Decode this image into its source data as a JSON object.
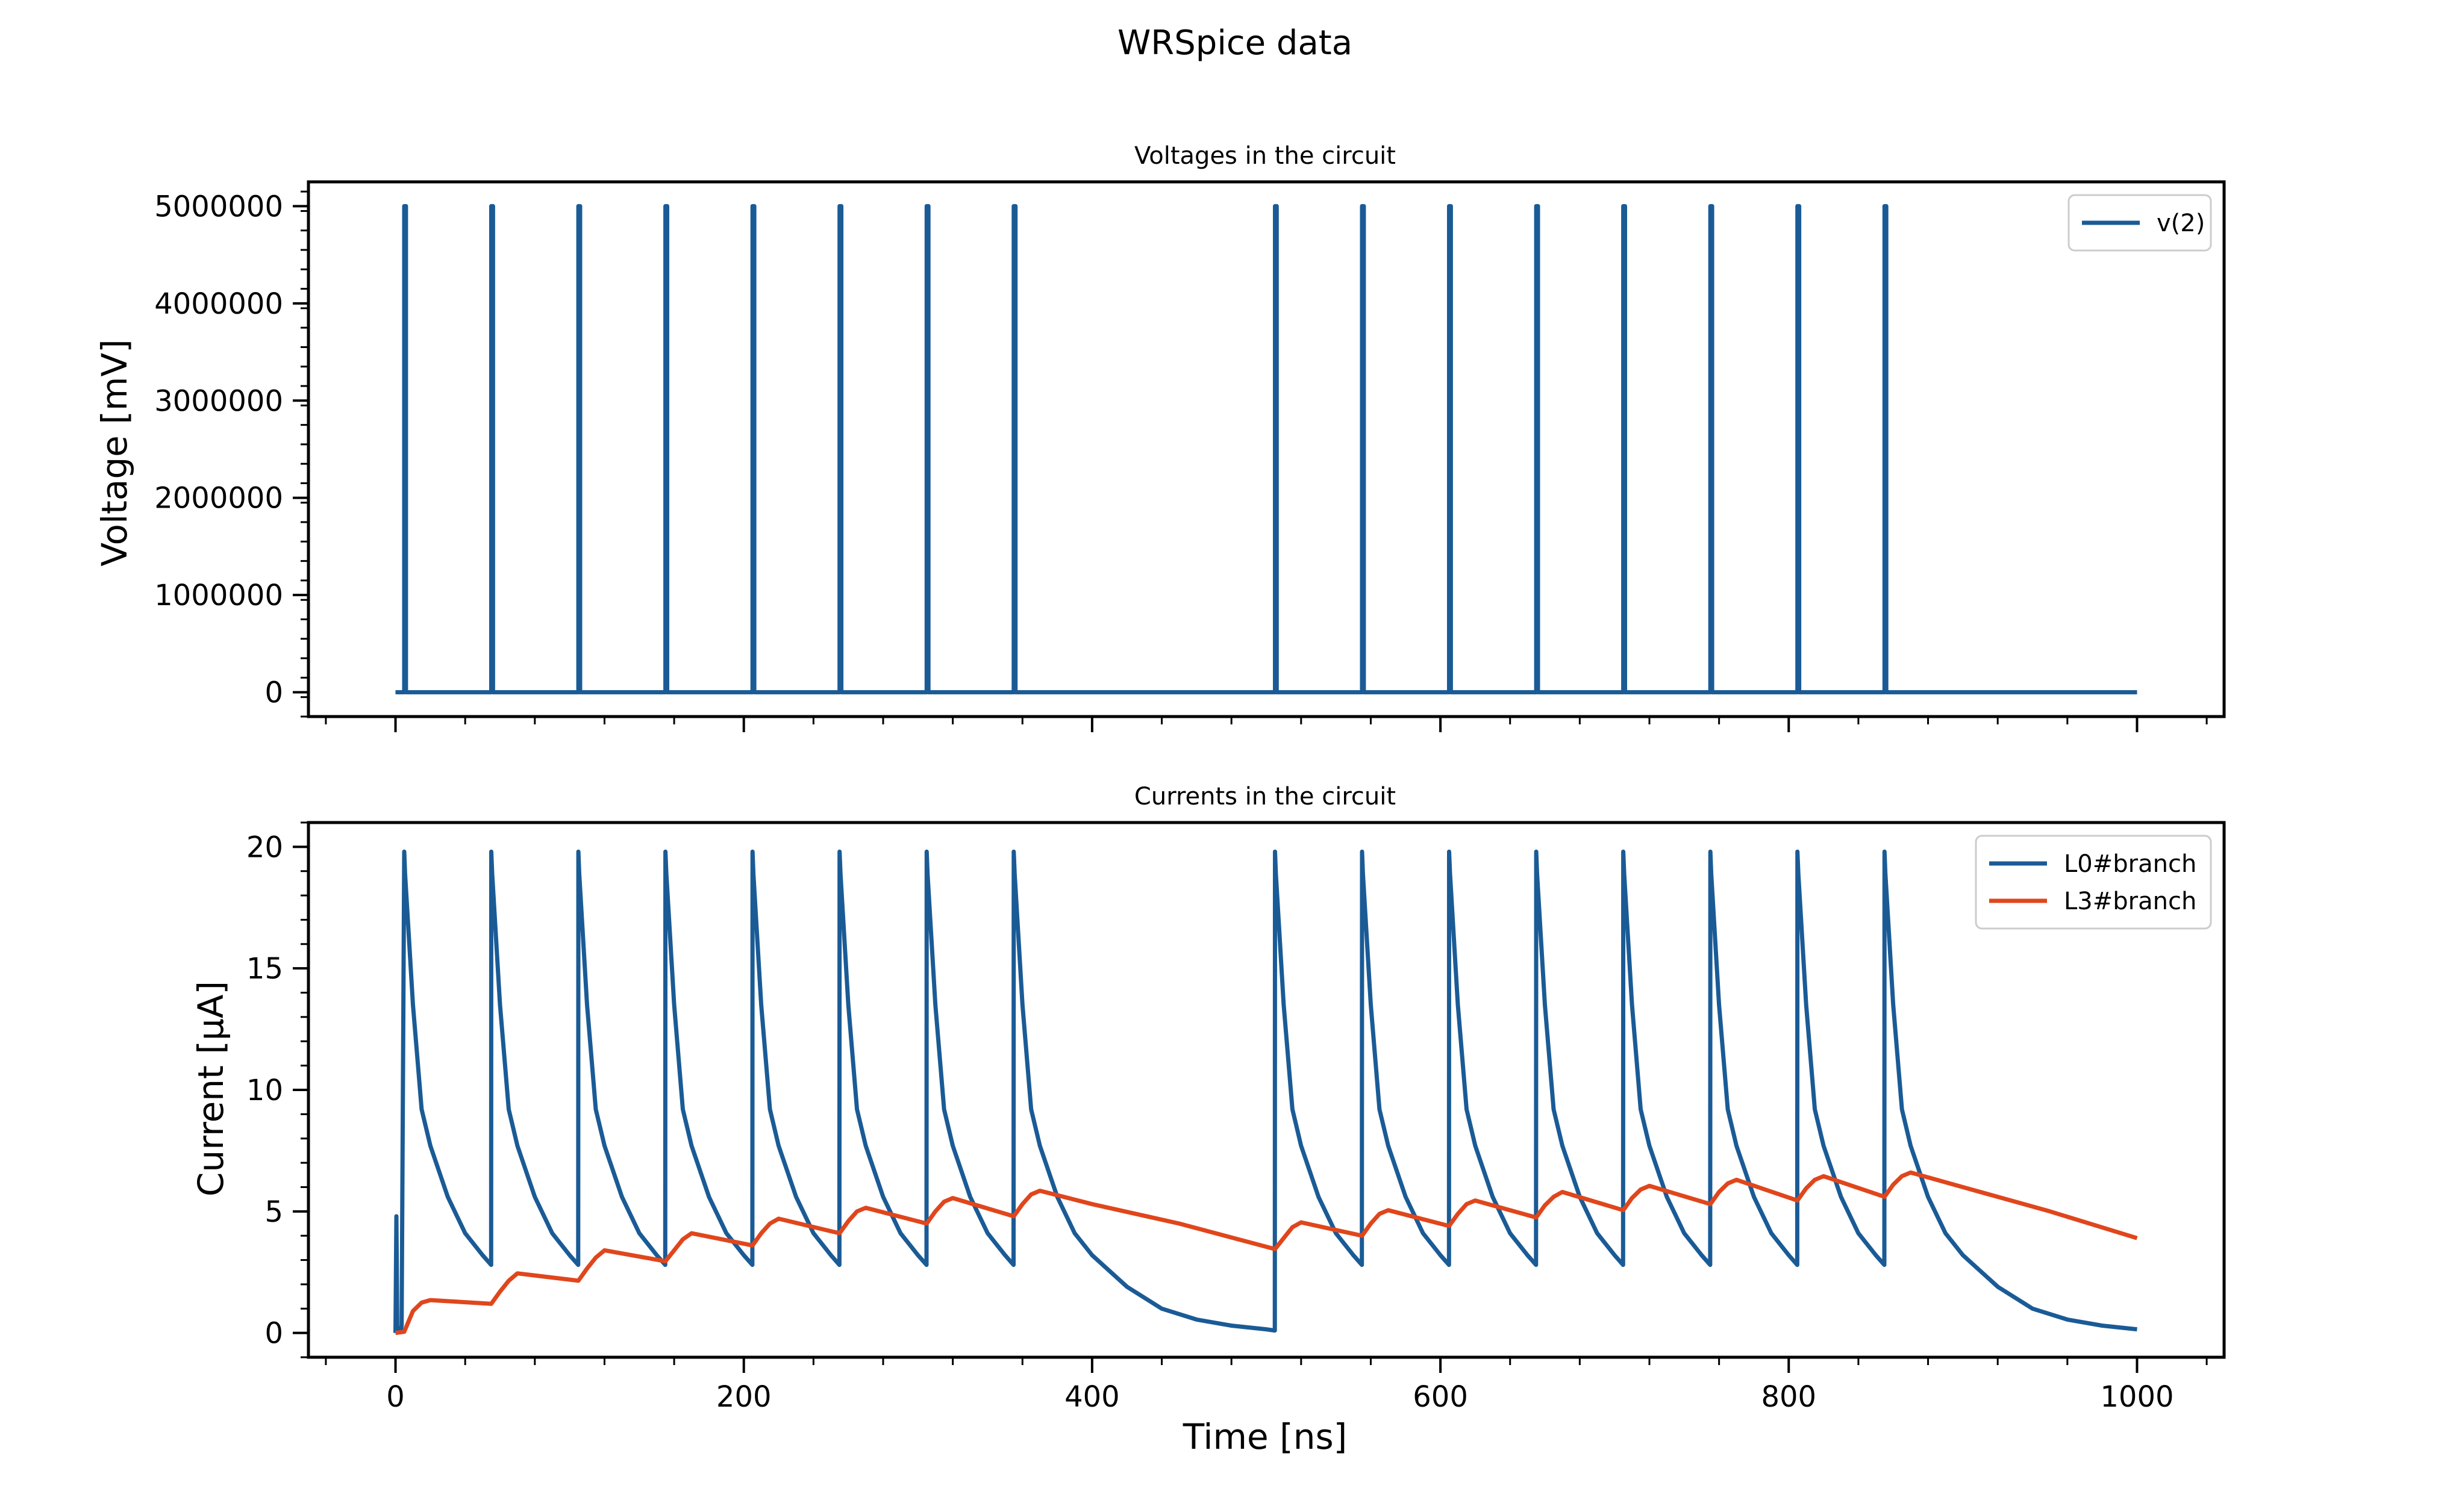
{
  "figure": {
    "title": "WRSpice data"
  },
  "chart_data": [
    {
      "type": "line",
      "title": "Voltages in the circuit",
      "xlabel": "",
      "ylabel": "Voltage [mV]",
      "xlim": [
        -50,
        1050
      ],
      "ylim": [
        -250000,
        5250000
      ],
      "x_ticks": [
        0,
        200,
        400,
        600,
        800,
        1000
      ],
      "x_tick_labels_visible": false,
      "y_ticks": [
        0,
        1000000,
        2000000,
        3000000,
        4000000,
        5000000
      ],
      "y_tick_labels": [
        "0",
        "1000000",
        "2000000",
        "3000000",
        "4000000",
        "5000000"
      ],
      "legend": {
        "position": "top-right",
        "entries": [
          "v(2)"
        ]
      },
      "grid": false,
      "series": [
        {
          "name": "v(2)",
          "color": "#1a5b96",
          "kind": "spikes",
          "baseline": 0,
          "peak": 5000000,
          "x_start": 0,
          "x_end": 1000,
          "spike_times": [
            5,
            55,
            105,
            155,
            205,
            255,
            305,
            355,
            505,
            555,
            605,
            655,
            705,
            755,
            805,
            855
          ]
        }
      ]
    },
    {
      "type": "line",
      "title": "Currents in the circuit",
      "xlabel": "Time [ns]",
      "ylabel": "Current [μA]",
      "xlim": [
        -50,
        1050
      ],
      "ylim": [
        -1,
        21
      ],
      "x_ticks": [
        0,
        200,
        400,
        600,
        800,
        1000
      ],
      "x_tick_labels": [
        "0",
        "200",
        "400",
        "600",
        "800",
        "1000"
      ],
      "y_ticks": [
        0,
        5,
        10,
        15,
        20
      ],
      "y_tick_labels": [
        "0",
        "5",
        "10",
        "15",
        "20"
      ],
      "legend": {
        "position": "top-right",
        "entries": [
          "L0#branch",
          "L3#branch"
        ]
      },
      "grid": false,
      "series": [
        {
          "name": "L0#branch",
          "color": "#1a5b96",
          "x": [
            0,
            0.5,
            1,
            2,
            3,
            3.5,
            5,
            5.5,
            10,
            15,
            20,
            30,
            40,
            50,
            54.9,
            55,
            55.5,
            60,
            65,
            70,
            80,
            90,
            100,
            104.9,
            105,
            105.5,
            110,
            115,
            120,
            130,
            140,
            150,
            154.9,
            155,
            155.5,
            160,
            165,
            170,
            180,
            190,
            200,
            204.9,
            205,
            205.5,
            210,
            215,
            220,
            230,
            240,
            250,
            254.9,
            255,
            255.5,
            260,
            265,
            270,
            280,
            290,
            300,
            304.9,
            305,
            305.5,
            310,
            315,
            320,
            330,
            340,
            350,
            354.9,
            355,
            355.5,
            360,
            365,
            370,
            380,
            390,
            400,
            420,
            440,
            460,
            480,
            500,
            504.9,
            505,
            505.5,
            510,
            515,
            520,
            530,
            540,
            550,
            554.9,
            555,
            555.5,
            560,
            565,
            570,
            580,
            590,
            600,
            604.9,
            605,
            605.5,
            610,
            615,
            620,
            630,
            640,
            650,
            654.9,
            655,
            655.5,
            660,
            665,
            670,
            680,
            690,
            700,
            704.9,
            705,
            705.5,
            710,
            715,
            720,
            730,
            740,
            750,
            754.9,
            755,
            755.5,
            760,
            765,
            770,
            780,
            790,
            800,
            804.9,
            805,
            805.5,
            810,
            815,
            820,
            830,
            840,
            850,
            854.9,
            855,
            855.5,
            860,
            865,
            870,
            880,
            890,
            900,
            920,
            940,
            960,
            980,
            1000
          ],
          "y": [
            0,
            4.8,
            0.2,
            0.1,
            0.1,
            0.3,
            19.8,
            18.9,
            13.5,
            9.2,
            7.7,
            5.6,
            4.1,
            3.2,
            2.8,
            19.8,
            18.9,
            13.5,
            9.2,
            7.7,
            5.6,
            4.1,
            3.2,
            2.8,
            19.8,
            18.9,
            13.5,
            9.2,
            7.7,
            5.6,
            4.1,
            3.2,
            2.8,
            19.8,
            18.9,
            13.5,
            9.2,
            7.7,
            5.6,
            4.1,
            3.2,
            2.8,
            19.8,
            18.9,
            13.5,
            9.2,
            7.7,
            5.6,
            4.1,
            3.2,
            2.8,
            19.8,
            18.9,
            13.5,
            9.2,
            7.7,
            5.6,
            4.1,
            3.2,
            2.8,
            19.8,
            18.9,
            13.5,
            9.2,
            7.7,
            5.6,
            4.1,
            3.2,
            2.8,
            19.8,
            18.9,
            13.5,
            9.2,
            7.7,
            5.6,
            4.1,
            3.2,
            1.9,
            1.0,
            0.55,
            0.3,
            0.15,
            0.1,
            19.8,
            18.9,
            13.5,
            9.2,
            7.7,
            5.6,
            4.1,
            3.2,
            2.8,
            19.8,
            18.9,
            13.5,
            9.2,
            7.7,
            5.6,
            4.1,
            3.2,
            2.8,
            19.8,
            18.9,
            13.5,
            9.2,
            7.7,
            5.6,
            4.1,
            3.2,
            2.8,
            19.8,
            18.9,
            13.5,
            9.2,
            7.7,
            5.6,
            4.1,
            3.2,
            2.8,
            19.8,
            18.9,
            13.5,
            9.2,
            7.7,
            5.6,
            4.1,
            3.2,
            2.8,
            19.8,
            18.9,
            13.5,
            9.2,
            7.7,
            5.6,
            4.1,
            3.2,
            2.8,
            19.8,
            18.9,
            13.5,
            9.2,
            7.7,
            5.6,
            4.1,
            3.2,
            2.8,
            19.8,
            18.9,
            13.5,
            9.2,
            7.7,
            5.6,
            4.1,
            3.2,
            1.9,
            1.0,
            0.55,
            0.3,
            0.15
          ]
        },
        {
          "name": "L3#branch",
          "color": "#e0461c",
          "x": [
            0,
            5,
            10,
            15,
            20,
            55,
            60,
            65,
            70,
            105,
            110,
            115,
            120,
            155,
            160,
            165,
            170,
            205,
            210,
            215,
            220,
            255,
            260,
            265,
            270,
            305,
            310,
            315,
            320,
            355,
            360,
            365,
            370,
            400,
            450,
            505,
            510,
            515,
            520,
            555,
            560,
            565,
            570,
            605,
            610,
            615,
            620,
            655,
            660,
            665,
            670,
            705,
            710,
            715,
            720,
            755,
            760,
            765,
            770,
            805,
            810,
            815,
            820,
            855,
            860,
            865,
            870,
            900,
            950,
            1000
          ],
          "y": [
            0,
            0.05,
            0.9,
            1.25,
            1.35,
            1.2,
            1.7,
            2.15,
            2.45,
            2.15,
            2.65,
            3.1,
            3.4,
            2.95,
            3.4,
            3.85,
            4.1,
            3.6,
            4.1,
            4.5,
            4.7,
            4.1,
            4.6,
            5.0,
            5.15,
            4.5,
            5.0,
            5.4,
            5.55,
            4.8,
            5.3,
            5.7,
            5.85,
            5.3,
            4.5,
            3.45,
            3.9,
            4.35,
            4.55,
            4.0,
            4.5,
            4.9,
            5.05,
            4.4,
            4.9,
            5.3,
            5.45,
            4.75,
            5.25,
            5.6,
            5.8,
            5.05,
            5.55,
            5.9,
            6.05,
            5.3,
            5.8,
            6.15,
            6.3,
            5.45,
            5.95,
            6.3,
            6.45,
            5.6,
            6.1,
            6.45,
            6.6,
            6.0,
            5.0,
            3.9
          ]
        }
      ]
    }
  ]
}
